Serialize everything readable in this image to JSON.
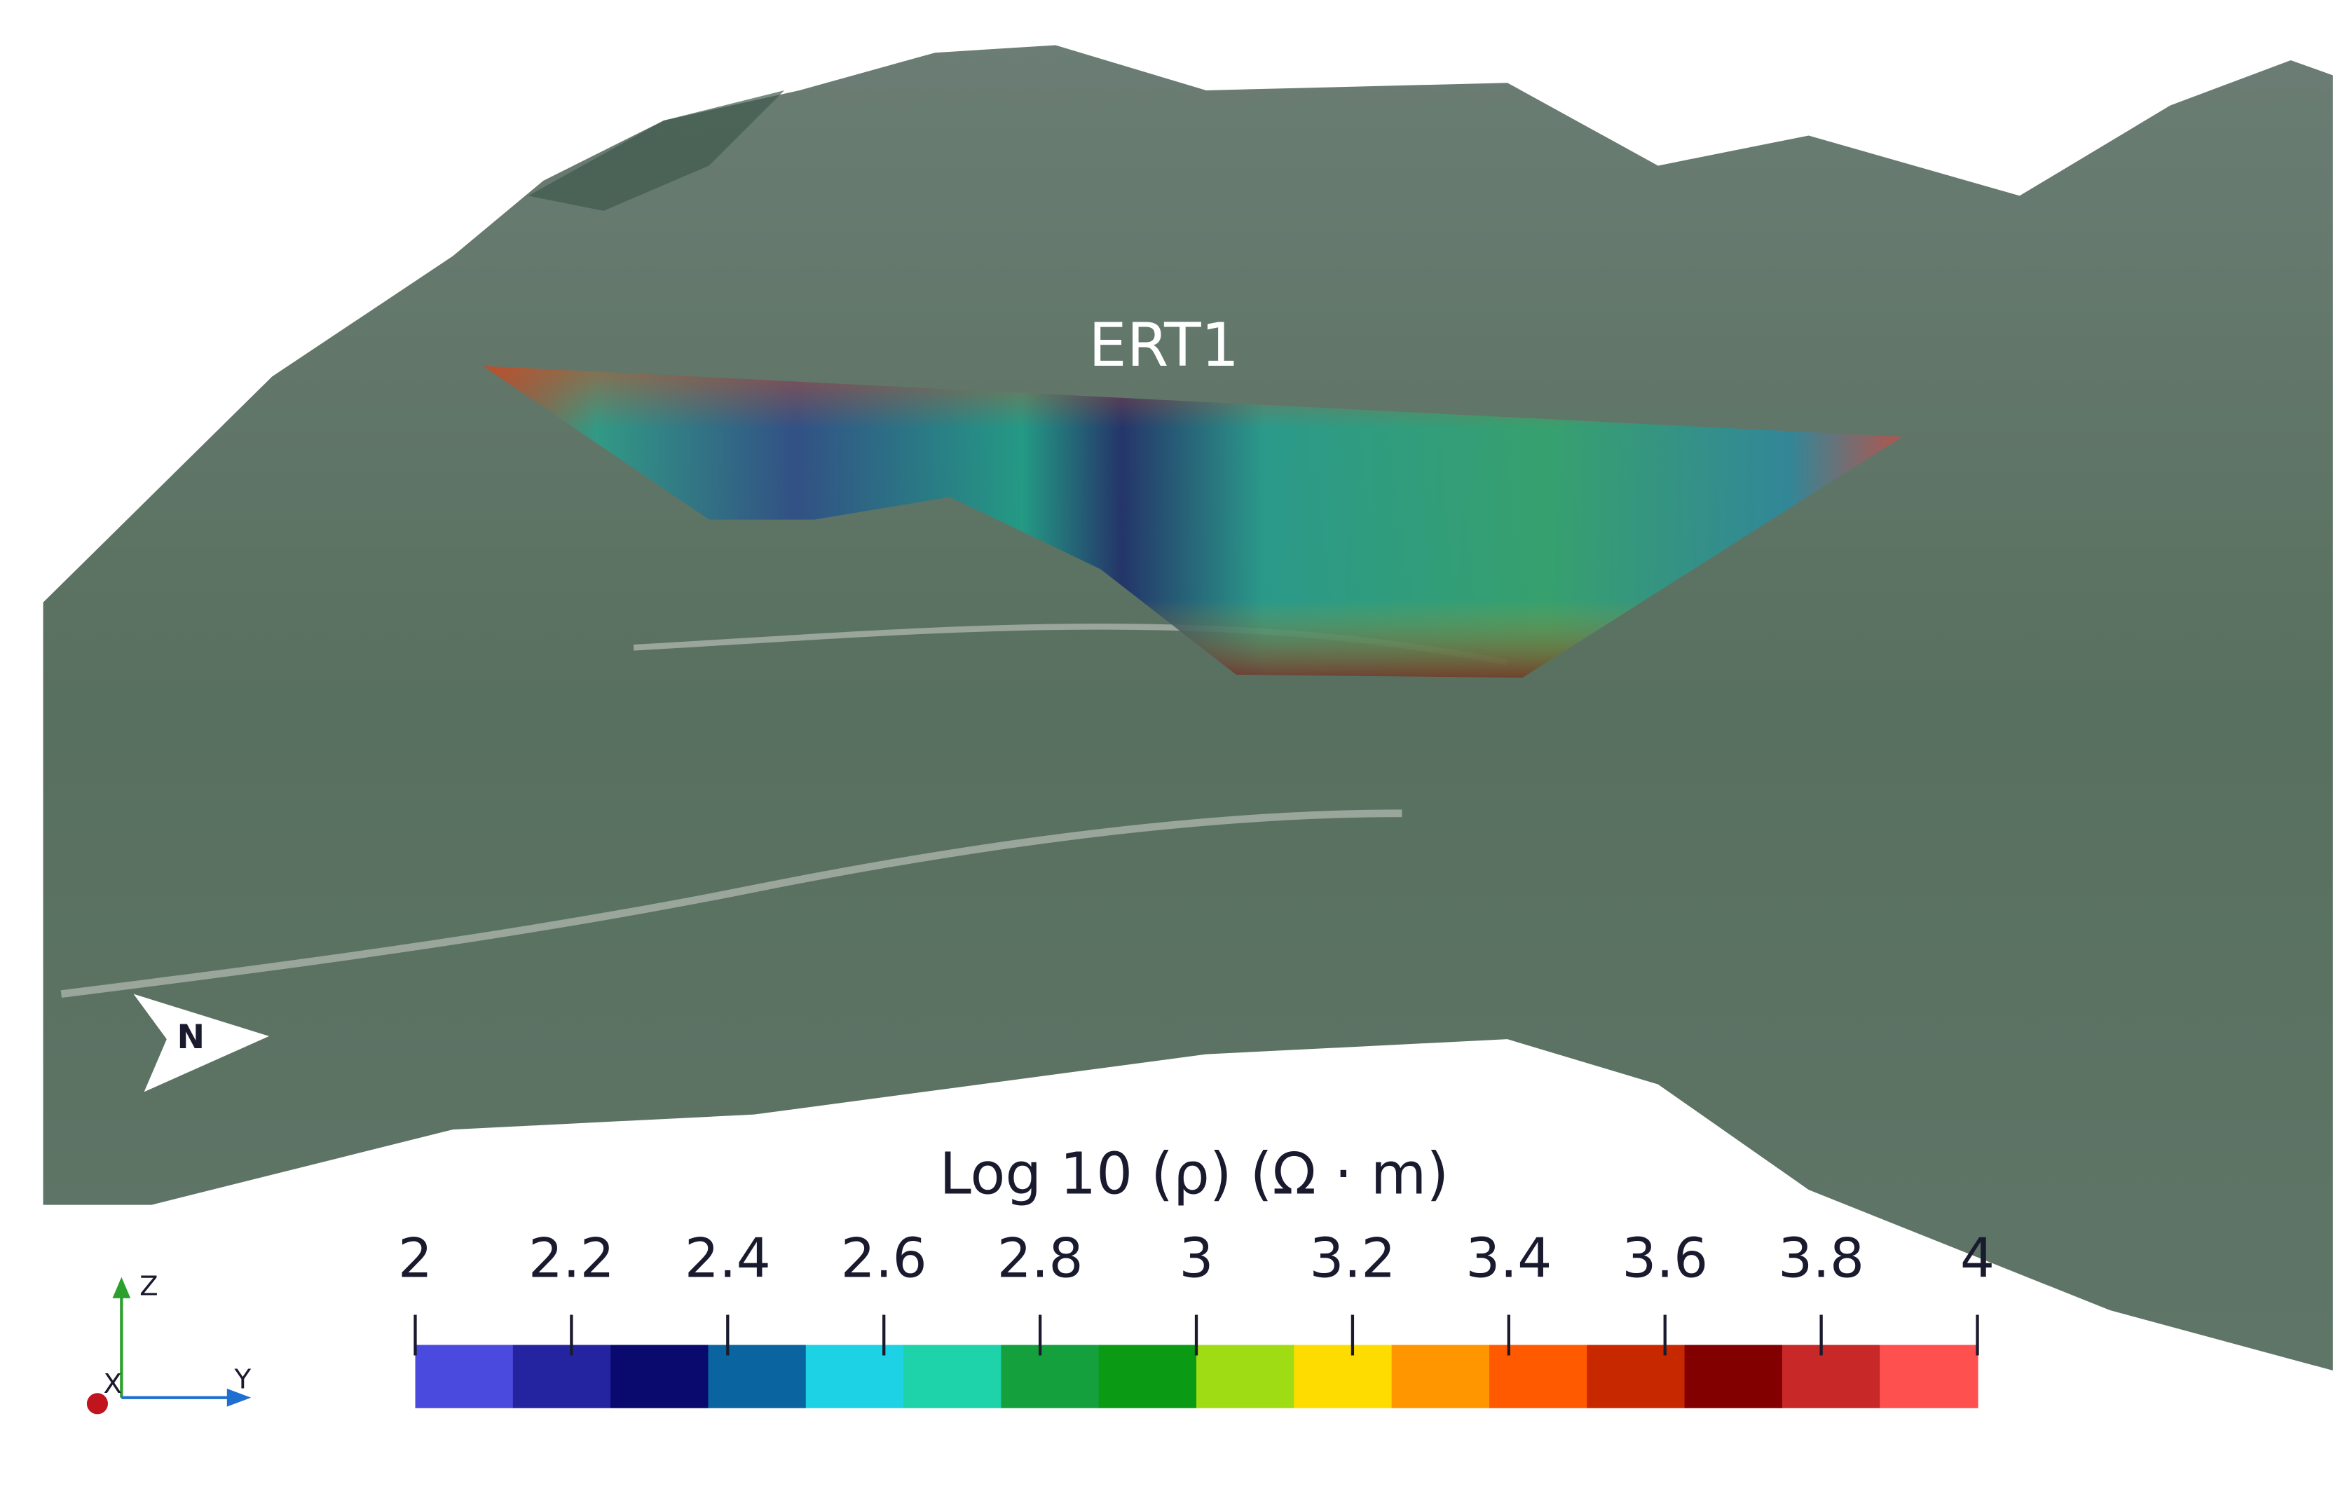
{
  "annotations": {
    "profile_label": "ERT1",
    "north_label": "N"
  },
  "colorbar": {
    "title": "Log 10 (ρ) (Ω · m)",
    "range": [
      2,
      4
    ],
    "ticks": [
      2,
      2.2,
      2.4,
      2.6,
      2.8,
      3,
      3.2,
      3.4,
      3.6,
      3.8,
      4
    ],
    "colors": [
      "#4a4adf",
      "#2424a0",
      "#0a0a6e",
      "#0a64a0",
      "#1ed2e6",
      "#1ed2aa",
      "#14a03c",
      "#0a9a14",
      "#a0dc14",
      "#ffdc00",
      "#ff9600",
      "#ff5a00",
      "#c82800",
      "#820000",
      "#c82828",
      "#ff5050"
    ]
  },
  "axes_triad": {
    "z": "Z",
    "x": "X",
    "y": "Y"
  }
}
